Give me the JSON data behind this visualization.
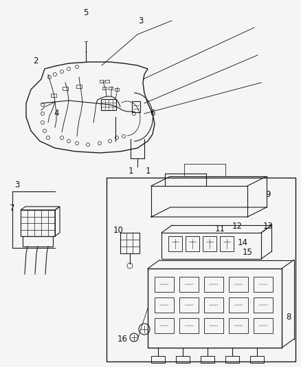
{
  "bg_color": "#f5f5f5",
  "line_color": "#1a1a1a",
  "label_color": "#111111",
  "fig_width": 4.38,
  "fig_height": 5.33,
  "dpi": 100
}
